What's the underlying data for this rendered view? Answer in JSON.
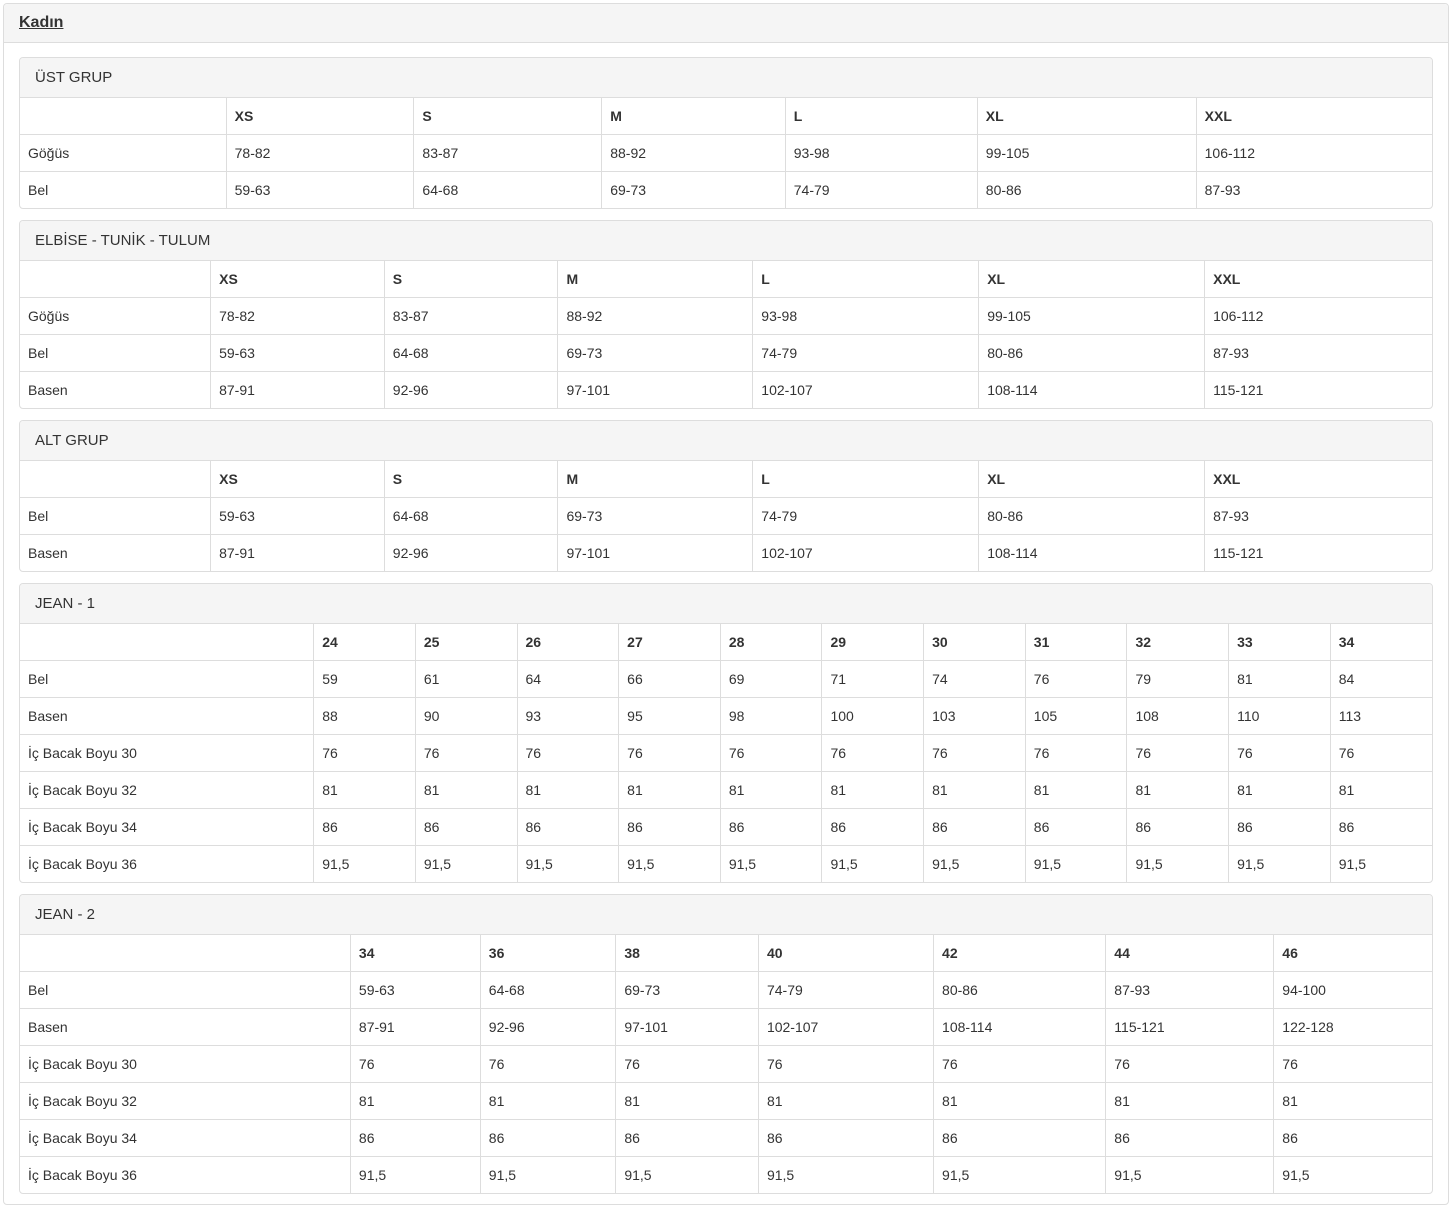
{
  "page": {
    "title": "Kadın"
  },
  "colors": {
    "heading_bg": "#f5f5f5",
    "border": "#dddddd",
    "text": "#333333",
    "body_bg": "#ffffff"
  },
  "sections": [
    {
      "id": "ust-grup",
      "heading": "ÜST GRUP",
      "columns": [
        "XS",
        "S",
        "M",
        "L",
        "XL",
        "XXL"
      ],
      "rows": [
        {
          "label": "Göğüs",
          "values": [
            "78-82",
            "83-87",
            "88-92",
            "93-98",
            "99-105",
            "106-112"
          ]
        },
        {
          "label": "Bel",
          "values": [
            "59-63",
            "64-68",
            "69-73",
            "74-79",
            "80-86",
            "87-93"
          ]
        }
      ]
    },
    {
      "id": "elbise-tunik-tulum",
      "heading": "ELBİSE - TUNİK - TULUM",
      "columns": [
        "XS",
        "S",
        "M",
        "L",
        "XL",
        "XXL"
      ],
      "rows": [
        {
          "label": "Göğüs",
          "values": [
            "78-82",
            "83-87",
            "88-92",
            "93-98",
            "99-105",
            "106-112"
          ]
        },
        {
          "label": "Bel",
          "values": [
            "59-63",
            "64-68",
            "69-73",
            "74-79",
            "80-86",
            "87-93"
          ]
        },
        {
          "label": "Basen",
          "values": [
            "87-91",
            "92-96",
            "97-101",
            "102-107",
            "108-114",
            "115-121"
          ]
        }
      ]
    },
    {
      "id": "alt-grup",
      "heading": "ALT GRUP",
      "columns": [
        "XS",
        "S",
        "M",
        "L",
        "XL",
        "XXL"
      ],
      "rows": [
        {
          "label": "Bel",
          "values": [
            "59-63",
            "64-68",
            "69-73",
            "74-79",
            "80-86",
            "87-93"
          ]
        },
        {
          "label": "Basen",
          "values": [
            "87-91",
            "92-96",
            "97-101",
            "102-107",
            "108-114",
            "115-121"
          ]
        }
      ]
    },
    {
      "id": "jean-1",
      "heading": "JEAN - 1",
      "columns": [
        "24",
        "25",
        "26",
        "27",
        "28",
        "29",
        "30",
        "31",
        "32",
        "33",
        "34"
      ],
      "rows": [
        {
          "label": "Bel",
          "values": [
            "59",
            "61",
            "64",
            "66",
            "69",
            "71",
            "74",
            "76",
            "79",
            "81",
            "84"
          ]
        },
        {
          "label": "Basen",
          "values": [
            "88",
            "90",
            "93",
            "95",
            "98",
            "100",
            "103",
            "105",
            "108",
            "110",
            "113"
          ]
        },
        {
          "label": "İç Bacak Boyu 30",
          "values": [
            "76",
            "76",
            "76",
            "76",
            "76",
            "76",
            "76",
            "76",
            "76",
            "76",
            "76"
          ]
        },
        {
          "label": "İç Bacak Boyu 32",
          "values": [
            "81",
            "81",
            "81",
            "81",
            "81",
            "81",
            "81",
            "81",
            "81",
            "81",
            "81"
          ]
        },
        {
          "label": "İç Bacak Boyu 34",
          "values": [
            "86",
            "86",
            "86",
            "86",
            "86",
            "86",
            "86",
            "86",
            "86",
            "86",
            "86"
          ]
        },
        {
          "label": "İç Bacak Boyu 36",
          "values": [
            "91,5",
            "91,5",
            "91,5",
            "91,5",
            "91,5",
            "91,5",
            "91,5",
            "91,5",
            "91,5",
            "91,5",
            "91,5"
          ]
        }
      ]
    },
    {
      "id": "jean-2",
      "heading": "JEAN - 2",
      "columns": [
        "34",
        "36",
        "38",
        "40",
        "42",
        "44",
        "46"
      ],
      "rows": [
        {
          "label": "Bel",
          "values": [
            "59-63",
            "64-68",
            "69-73",
            "74-79",
            "80-86",
            "87-93",
            "94-100"
          ]
        },
        {
          "label": "Basen",
          "values": [
            "87-91",
            "92-96",
            "97-101",
            "102-107",
            "108-114",
            "115-121",
            "122-128"
          ]
        },
        {
          "label": "İç Bacak Boyu 30",
          "values": [
            "76",
            "76",
            "76",
            "76",
            "76",
            "76",
            "76"
          ]
        },
        {
          "label": "İç Bacak Boyu 32",
          "values": [
            "81",
            "81",
            "81",
            "81",
            "81",
            "81",
            "81"
          ]
        },
        {
          "label": "İç Bacak Boyu 34",
          "values": [
            "86",
            "86",
            "86",
            "86",
            "86",
            "86",
            "86"
          ]
        },
        {
          "label": "İç Bacak Boyu 36",
          "values": [
            "91,5",
            "91,5",
            "91,5",
            "91,5",
            "91,5",
            "91,5",
            "91,5"
          ]
        }
      ]
    }
  ]
}
